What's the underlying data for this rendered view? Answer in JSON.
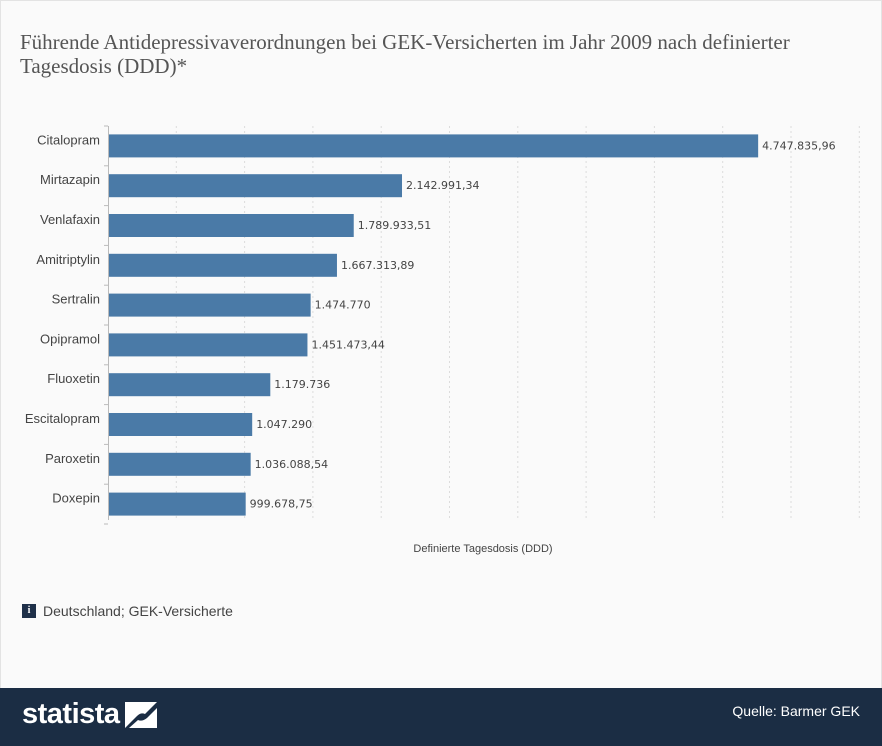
{
  "header": {
    "title": "Führende Antidepressivaverordnungen bei GEK-Versicherten im Jahr 2009 nach definierter Tagesdosis (DDD)*"
  },
  "chart_data": {
    "type": "bar",
    "orientation": "horizontal",
    "categories": [
      "Citalopram",
      "Mirtazapin",
      "Venlafaxin",
      "Amitriptylin",
      "Sertralin",
      "Opipramol",
      "Fluoxetin",
      "Escitalopram",
      "Paroxetin",
      "Doxepin"
    ],
    "values": [
      4747835.96,
      2142991.34,
      1789933.51,
      1667313.89,
      1474770,
      1451473.44,
      1179736,
      1047290,
      1036088.54,
      999678.75
    ],
    "value_labels": [
      "4.747.835,96",
      "2.142.991,34",
      "1.789.933,51",
      "1.667.313,89",
      "1.474.770",
      "1.451.473,44",
      "1.179.736",
      "1.047.290",
      "1.036.088,54",
      "999.678,75"
    ],
    "xlabel": "Definierte Tagesdosis (DDD)",
    "ylabel": "",
    "xlim": [
      0,
      5500000
    ],
    "grid": true,
    "bar_color": "#4a7aa7"
  },
  "info": {
    "icon": "info-icon",
    "text": "Deutschland; GEK-Versicherte"
  },
  "footer": {
    "logo_text": "statista",
    "source": "Quelle: Barmer GEK",
    "background": "#1b2d44"
  }
}
